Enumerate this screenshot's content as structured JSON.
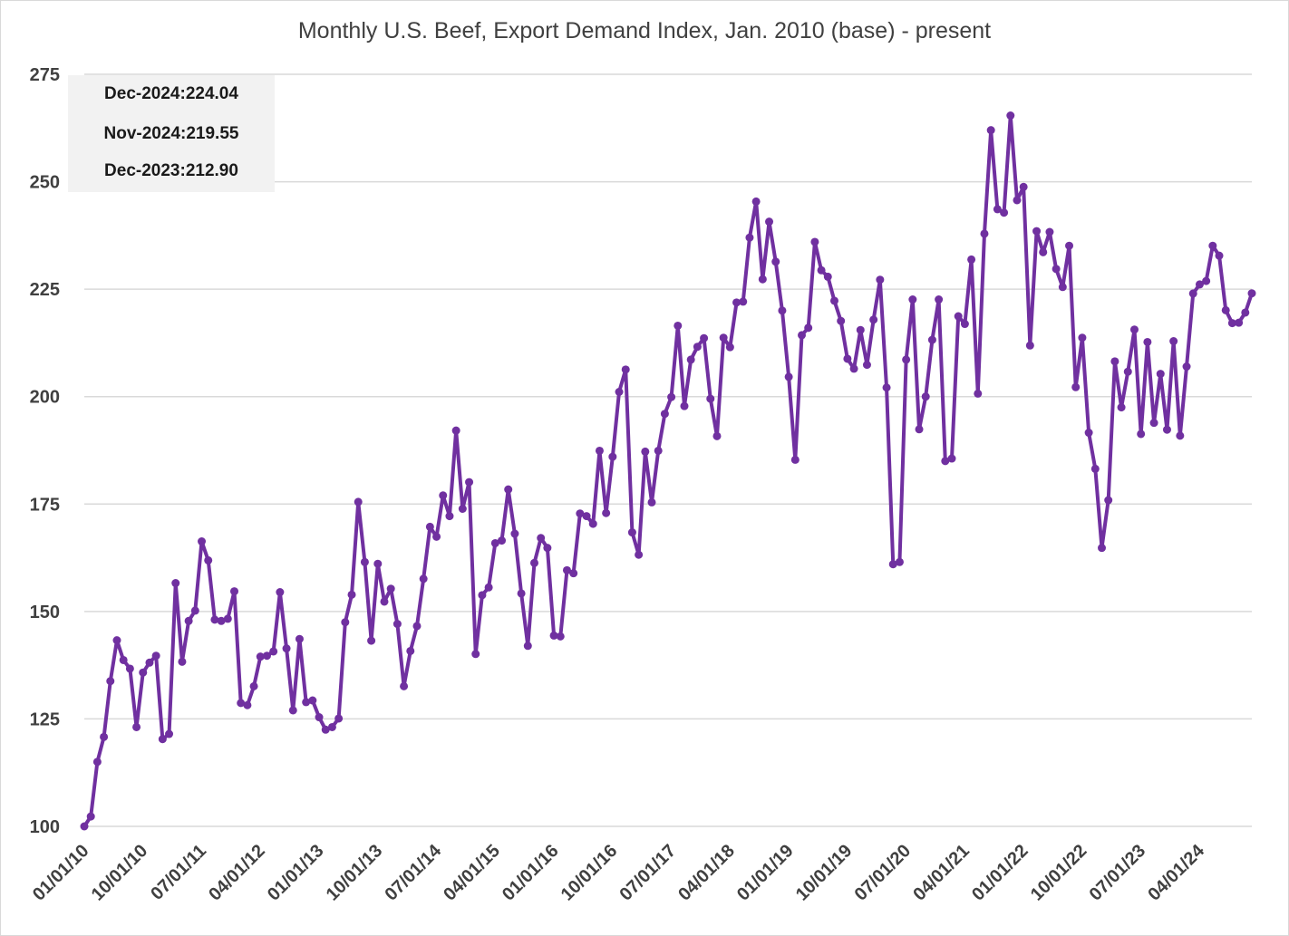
{
  "chart_data": {
    "type": "line",
    "title": "Monthly U.S. Beef, Export Demand Index, Jan. 2010 (base) - present",
    "xlabel": "",
    "ylabel": "",
    "ylim": [
      100,
      275
    ],
    "yticks": [
      "100",
      "125",
      "150",
      "175",
      "200",
      "225",
      "250",
      "275"
    ],
    "xticks": [
      {
        "label": "01/01/10",
        "index": 0
      },
      {
        "label": "10/01/10",
        "index": 9
      },
      {
        "label": "07/01/11",
        "index": 18
      },
      {
        "label": "04/01/12",
        "index": 27
      },
      {
        "label": "01/01/13",
        "index": 36
      },
      {
        "label": "10/01/13",
        "index": 45
      },
      {
        "label": "07/01/14",
        "index": 54
      },
      {
        "label": "04/01/15",
        "index": 63
      },
      {
        "label": "01/01/16",
        "index": 72
      },
      {
        "label": "10/01/16",
        "index": 81
      },
      {
        "label": "07/01/17",
        "index": 90
      },
      {
        "label": "04/01/18",
        "index": 99
      },
      {
        "label": "01/01/19",
        "index": 108
      },
      {
        "label": "10/01/19",
        "index": 117
      },
      {
        "label": "07/01/20",
        "index": 126
      },
      {
        "label": "04/01/21",
        "index": 135
      },
      {
        "label": "01/01/22",
        "index": 144
      },
      {
        "label": "10/01/22",
        "index": 153
      },
      {
        "label": "07/01/23",
        "index": 162
      },
      {
        "label": "04/01/24",
        "index": 171
      }
    ],
    "grid": true,
    "legend": "none",
    "series_color": "#7030a0",
    "x_start": "2010-01",
    "x_end": "2024-12",
    "series": [
      {
        "values": [
          100.0,
          102.3,
          115.0,
          120.8,
          133.8,
          143.3,
          138.7,
          136.7,
          123.1,
          135.8,
          138.1,
          139.7,
          120.3,
          121.5,
          156.6,
          138.3,
          147.8,
          150.2,
          166.3,
          161.9,
          148.1,
          147.8,
          148.3,
          154.7,
          128.7,
          128.2,
          132.6,
          139.5,
          139.7,
          140.7,
          154.5,
          141.4,
          127.0,
          143.6,
          128.9,
          129.3,
          125.4,
          122.5,
          123.1,
          125.1,
          147.5,
          153.9,
          175.5,
          161.5,
          143.2,
          161.1,
          152.3,
          155.3,
          147.1,
          132.6,
          140.8,
          146.6,
          157.6,
          169.7,
          167.4,
          177.0,
          172.2,
          192.1,
          173.9,
          180.1,
          140.1,
          153.8,
          155.6,
          165.9,
          166.5,
          178.4,
          168.1,
          154.2,
          142.0,
          161.3,
          167.1,
          164.8,
          144.4,
          144.2,
          159.6,
          158.9,
          172.8,
          172.2,
          170.4,
          187.4,
          172.9,
          186.0,
          201.1,
          206.3,
          168.4,
          163.2,
          187.2,
          175.4,
          187.4,
          196.0,
          199.9,
          216.5,
          197.8,
          208.6,
          211.6,
          213.6,
          199.5,
          190.8,
          213.7,
          211.5,
          221.9,
          222.1,
          237.0,
          245.4,
          227.3,
          240.7,
          231.4,
          220.0,
          204.6,
          185.3,
          214.3,
          216.0,
          236.0,
          229.4,
          227.9,
          222.3,
          217.6,
          208.8,
          206.5,
          215.5,
          207.4,
          217.9,
          227.2,
          202.1,
          161.0,
          161.5,
          208.6,
          222.6,
          192.4,
          200.0,
          213.2,
          222.6,
          185.0,
          185.6,
          218.7,
          216.9,
          231.9,
          200.7,
          237.9,
          262.0,
          243.6,
          242.8,
          265.4,
          245.7,
          248.8,
          211.9,
          238.5,
          233.6,
          238.3,
          229.7,
          225.5,
          235.1,
          202.2,
          213.7,
          191.6,
          183.2,
          164.8,
          175.9,
          208.2,
          197.5,
          205.8,
          215.6,
          191.3,
          212.7,
          193.9,
          205.3,
          192.3,
          212.9,
          190.9,
          207.0,
          224.0,
          226.1,
          226.9,
          235.1,
          232.8,
          220.1,
          217.1,
          217.2,
          219.55,
          224.04
        ]
      }
    ]
  },
  "callout": {
    "lines": [
      {
        "label": "Dec-2024:",
        "value": "224.04"
      },
      {
        "label": "Nov-2024:",
        "value": "219.55"
      },
      {
        "label": "Dec-2023:",
        "value": "212.90"
      }
    ]
  }
}
